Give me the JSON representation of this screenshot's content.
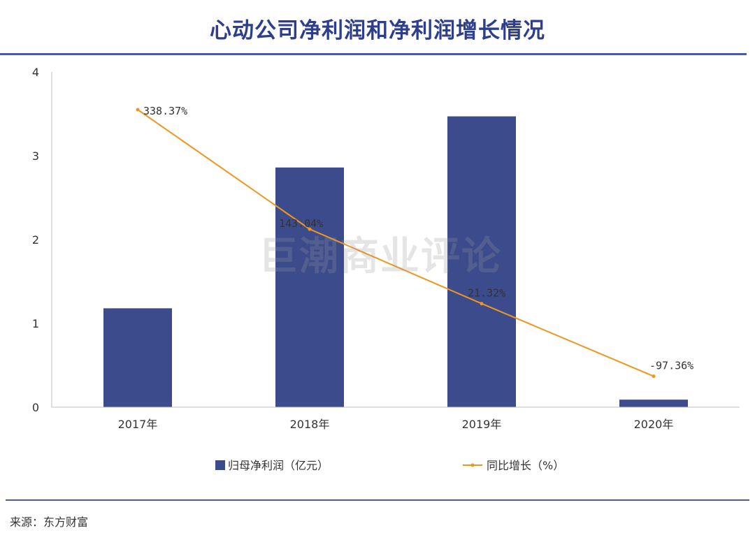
{
  "title": "心动公司净利润和净利润增长情况",
  "source": "来源：东方财富",
  "watermark": "巨潮商业评论",
  "colors": {
    "bar": "#3b4b8c",
    "line": "#f0961e",
    "title": "#2c3e8c",
    "rule": "#4a5aa8"
  },
  "chart_data": {
    "type": "bar",
    "categories": [
      "2017年",
      "2018年",
      "2019年",
      "2020年"
    ],
    "ylim": [
      0,
      4
    ],
    "yticks": [
      "0",
      "1",
      "2",
      "3",
      "4"
    ],
    "series": [
      {
        "name": "归母净利润（亿元）",
        "type": "bar",
        "values": [
          1.18,
          2.86,
          3.47,
          0.09
        ]
      },
      {
        "name": "同比增长（%）",
        "type": "line",
        "values": [
          338.37,
          143.04,
          21.32,
          -97.36
        ],
        "labels": [
          "338.37%",
          "143.04%",
          "21.32%",
          "-97.36%"
        ]
      }
    ],
    "legend": "bottom"
  }
}
